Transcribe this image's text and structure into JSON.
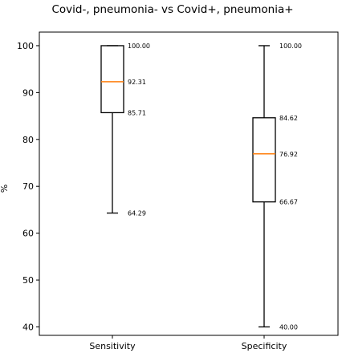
{
  "chart_data": {
    "type": "box",
    "title": "Covid-, pneumonia- vs Covid+, pneumonia+",
    "ylabel": "%",
    "xlabel": "",
    "ylim": [
      38.2,
      102.9
    ],
    "yticks": [
      40,
      50,
      60,
      70,
      80,
      90,
      100
    ],
    "categories": [
      "Sensitivity",
      "Specificity"
    ],
    "boxes": [
      {
        "whisker_low": 64.29,
        "q1": 85.71,
        "median": 92.31,
        "q3": 100.0,
        "whisker_high": 100.0,
        "labels": [
          "100.00",
          "92.31",
          "85.71",
          "64.29"
        ]
      },
      {
        "whisker_low": 40.0,
        "q1": 66.67,
        "median": 76.92,
        "q3": 84.62,
        "whisker_high": 100.0,
        "labels": [
          "100.00",
          "84.62",
          "76.92",
          "66.67",
          "40.00"
        ]
      }
    ],
    "colors": {
      "median": "#ff7f0e",
      "box": "#000000"
    },
    "grid": false,
    "legend": "none"
  }
}
